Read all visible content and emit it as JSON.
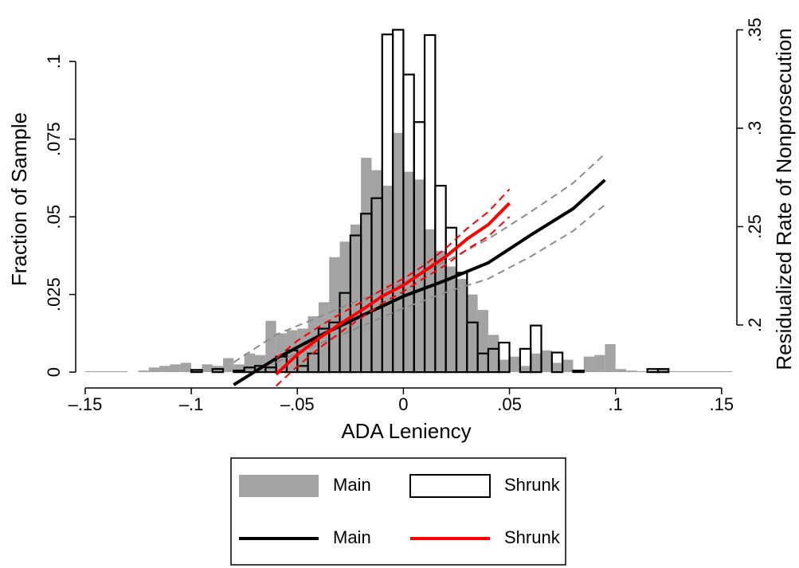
{
  "chart_data": {
    "type": "histogram",
    "x_label": "ADA Leniency",
    "y_label": "Fraction of Sample",
    "y2_label": "Residualized Rate of Nonprosecution",
    "bins": [
      -0.15,
      -0.145,
      -0.14,
      -0.135,
      -0.13,
      -0.125,
      -0.12,
      -0.115,
      -0.11,
      -0.105,
      -0.1,
      -0.095,
      -0.09,
      -0.085,
      -0.08,
      -0.075,
      -0.07,
      -0.065,
      -0.06,
      -0.055,
      -0.05,
      -0.045,
      -0.04,
      -0.035,
      -0.03,
      -0.025,
      -0.02,
      -0.015,
      -0.01,
      -0.005,
      0,
      0.005,
      0.01,
      0.015,
      0.02,
      0.025,
      0.03,
      0.035,
      0.04,
      0.045,
      0.05,
      0.055,
      0.06,
      0.065,
      0.07,
      0.075,
      0.08,
      0.085,
      0.09,
      0.095,
      0.1,
      0.105,
      0.11,
      0.115,
      0.12,
      0.125,
      0.13,
      0.135,
      0.14,
      0.145,
      0.15,
      0.155
    ],
    "series": [
      {
        "name": "Main",
        "color": "#a3a3a3",
        "style": "filled",
        "values": [
          0.0003,
          0.0003,
          0.0003,
          0.0003,
          0,
          0.0005,
          0.0015,
          0.002,
          0.0025,
          0.003,
          0.001,
          0.0025,
          0.002,
          0.0045,
          0.0025,
          0.006,
          0.0055,
          0.0165,
          0.0125,
          0.0135,
          0.014,
          0.018,
          0.0225,
          0.037,
          0.042,
          0.0475,
          0.069,
          0.065,
          0.06,
          0.077,
          0.0645,
          0.062,
          0.046,
          0.039,
          0.034,
          0.03,
          0.025,
          0.02,
          0.012,
          0.004,
          0.005,
          0.002,
          0.006,
          0.007,
          0.003,
          0.004,
          0.0005,
          0.005,
          0.0055,
          0.009,
          0.001,
          0.0005,
          0.0003,
          0.0005,
          0.0008,
          0.0003,
          0.0003,
          0.0003,
          0.0003,
          0.0003,
          0.0003
        ]
      },
      {
        "name": "Shrunk",
        "color": "#000000",
        "style": "outline",
        "values": [
          0,
          0,
          0,
          0,
          0,
          0,
          0,
          0,
          0,
          0,
          0.0007,
          0,
          0.001,
          0,
          0.0005,
          0.0015,
          0.002,
          0.0015,
          0.005,
          0.007,
          0.002,
          0.006,
          0.014,
          0.016,
          0.0255,
          0.044,
          0.051,
          0.056,
          0.1087,
          0.1102,
          0.0958,
          0.0805,
          0.1085,
          0.06,
          0.0465,
          0.032,
          0.016,
          0.006,
          0.0075,
          0.0095,
          0,
          0.0075,
          0.015,
          0,
          0.0063,
          0,
          0.0005,
          0,
          0,
          0,
          0,
          0,
          0,
          0.001,
          0.001,
          0,
          0,
          0,
          0,
          0,
          0
        ]
      }
    ],
    "line_series": [
      {
        "name": "Main",
        "type": "line",
        "axis": "y2",
        "color": "#000000",
        "ci_color": "#8c8c8c",
        "x": [
          -0.08,
          -0.06,
          -0.04,
          -0.02,
          0,
          0.02,
          0.04,
          0.06,
          0.08,
          0.095
        ],
        "values": [
          0.1696,
          0.183,
          0.1943,
          0.2045,
          0.2146,
          0.2227,
          0.2316,
          0.2457,
          0.2591,
          0.2737
        ],
        "ci_upper": [
          0.181,
          0.1951,
          0.204,
          0.213,
          0.2215,
          0.2324,
          0.2437,
          0.2575,
          0.2721,
          0.287
        ],
        "ci_lower": [
          null,
          0.181,
          0.1903,
          0.1992,
          0.2085,
          0.2166,
          0.2235,
          0.2348,
          0.2478,
          0.2611
        ]
      },
      {
        "name": "Shrunk",
        "type": "line",
        "axis": "y2",
        "color": "#ff0000",
        "ci_color": "#ff0000",
        "x": [
          -0.06,
          -0.05,
          -0.04,
          -0.03,
          -0.02,
          -0.01,
          0,
          0.01,
          0.02,
          0.03,
          0.04,
          0.05
        ],
        "values": [
          0.1749,
          0.185,
          0.1931,
          0.2004,
          0.2073,
          0.2146,
          0.2202,
          0.2275,
          0.2348,
          0.2437,
          0.251,
          0.2619
        ],
        "ci_upper": [
          0.183,
          0.192,
          0.199,
          0.2055,
          0.2115,
          0.218,
          0.2235,
          0.2305,
          0.239,
          0.249,
          0.2575,
          0.269
        ],
        "ci_lower": [
          0.169,
          0.179,
          0.188,
          0.196,
          0.2035,
          0.211,
          0.217,
          0.224,
          0.2305,
          0.2385,
          0.245,
          0.255
        ]
      }
    ],
    "xlim": [
      -0.1545,
      0.1572
    ],
    "ylim": [
      -0.0051,
      0.1162
    ],
    "y2lim": [
      0.168,
      0.3595
    ],
    "xticks": [
      {
        "value": -0.15,
        "label": "–.15"
      },
      {
        "value": -0.1,
        "label": "–.1"
      },
      {
        "value": -0.05,
        "label": "–.05"
      },
      0,
      {
        "value": 0.05,
        "label": ".05"
      },
      {
        "value": 0.1,
        "label": ".1"
      },
      {
        "value": 0.15,
        "label": ".15"
      }
    ],
    "yticks": [
      0,
      {
        "value": 0.025,
        "label": ".025"
      },
      {
        "value": 0.05,
        "label": ".05"
      },
      {
        "value": 0.075,
        "label": ".075"
      },
      {
        "value": 0.1,
        "label": ".1"
      }
    ],
    "y2ticks": [
      {
        "value": 0.2,
        "label": ".2"
      },
      {
        "value": 0.25,
        "label": ".25"
      },
      {
        "value": 0.3,
        "label": ".3"
      },
      {
        "value": 0.35,
        "label": ".35"
      }
    ]
  }
}
